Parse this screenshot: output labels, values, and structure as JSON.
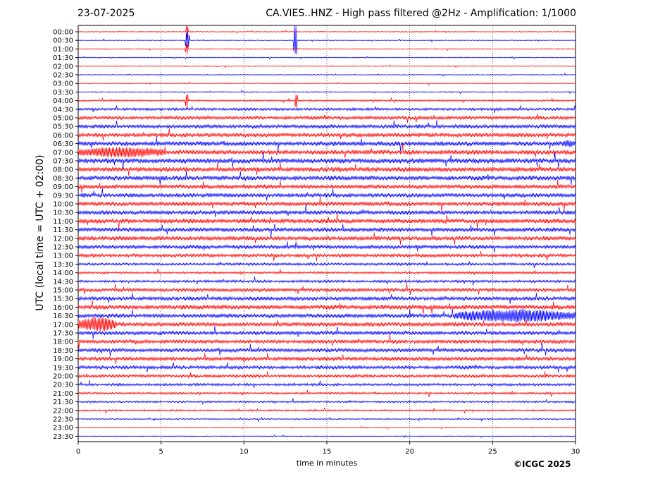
{
  "header": {
    "date": "23-07-2025",
    "title": "CA.VIES..HNZ - High pass filtered @2Hz - Amplification: 1/1000"
  },
  "footer": {
    "copyright": "©ICGC 2025"
  },
  "chart_data": {
    "type": "line",
    "title": "CA.VIES..HNZ - High pass filtered @2Hz - Amplification: 1/1000",
    "xlabel": "time in minutes",
    "ylabel": "UTC (local time = UTC + 02:00)",
    "xlim": [
      0,
      30
    ],
    "xticks": [
      0,
      5,
      10,
      15,
      20,
      25,
      30
    ],
    "vertical_gridlines": [
      5,
      10,
      15,
      20,
      25
    ],
    "row_labels": [
      "00:00",
      "00:30",
      "01:00",
      "01:30",
      "02:00",
      "02:30",
      "03:00",
      "03:30",
      "04:00",
      "04:30",
      "05:00",
      "05:30",
      "06:00",
      "06:30",
      "07:00",
      "07:30",
      "08:00",
      "08:30",
      "09:00",
      "09:30",
      "10:00",
      "10:30",
      "11:00",
      "11:30",
      "12:00",
      "12:30",
      "13:00",
      "13:30",
      "14:00",
      "14:30",
      "15:00",
      "15:30",
      "16:00",
      "16:30",
      "17:00",
      "17:30",
      "18:00",
      "18:30",
      "19:00",
      "19:30",
      "20:00",
      "20:30",
      "21:00",
      "21:30",
      "22:00",
      "22:30",
      "23:00",
      "23:30"
    ],
    "trace_colors": [
      "#ff0000",
      "#0000ff"
    ],
    "noise_level": [
      0.1,
      0.1,
      0.1,
      0.1,
      0.1,
      0.1,
      0.1,
      0.12,
      0.2,
      0.3,
      0.4,
      0.45,
      0.5,
      0.55,
      0.55,
      0.6,
      0.55,
      0.55,
      0.5,
      0.5,
      0.5,
      0.5,
      0.55,
      0.5,
      0.5,
      0.45,
      0.4,
      0.3,
      0.25,
      0.3,
      0.4,
      0.45,
      0.55,
      0.5,
      0.5,
      0.45,
      0.45,
      0.45,
      0.45,
      0.4,
      0.35,
      0.3,
      0.25,
      0.22,
      0.2,
      0.15,
      0.1,
      0.1
    ],
    "events": [
      {
        "row": 0,
        "start": 6.5,
        "end": 6.65,
        "amplitude": 2.5
      },
      {
        "row": 1,
        "start": 6.45,
        "end": 6.7,
        "amplitude": 3
      },
      {
        "row": 1,
        "start": 13.0,
        "end": 13.2,
        "amplitude": 5
      },
      {
        "row": 2,
        "start": 6.45,
        "end": 6.65,
        "amplitude": 1.5
      },
      {
        "row": 8,
        "start": 6.45,
        "end": 6.65,
        "amplitude": 2
      },
      {
        "row": 8,
        "start": 13.05,
        "end": 13.25,
        "amplitude": 2
      },
      {
        "row": 14,
        "start": 0.0,
        "end": 5.3,
        "amplitude": 1.3
      },
      {
        "row": 13,
        "start": 29.2,
        "end": 30.0,
        "amplitude": 0.9
      },
      {
        "row": 28,
        "start": 20.5,
        "end": 30.0,
        "amplitude": 0.25
      },
      {
        "row": 33,
        "start": 22.7,
        "end": 30.0,
        "amplitude": 1.6
      },
      {
        "row": 34,
        "start": 0.0,
        "end": 2.3,
        "amplitude": 1.8
      }
    ]
  }
}
